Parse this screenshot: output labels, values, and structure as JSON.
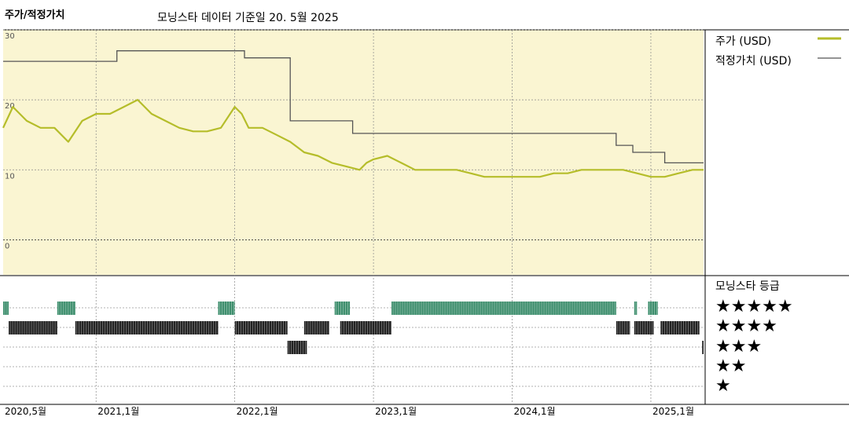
{
  "title": "주가/적정가치",
  "subtitle": "모닝스타 데이터 기준일 20. 5월 2025",
  "legend": {
    "price_label": "주가 (USD)",
    "fair_label": "적정가치 (USD)"
  },
  "rating_title": "모닝스타 등급",
  "rating_levels": [
    "★★★★★",
    "★★★★",
    "★★★",
    "★★",
    "★"
  ],
  "colors": {
    "price": "#b5bd2a",
    "fair": "#555555",
    "panel_bg": "#faf5d2",
    "five_star": "#3f8f6e",
    "four_star": "#222222"
  },
  "chart_data": {
    "type": "line",
    "x_ticks": [
      "2020,5월",
      "2021,1월",
      "2022,1월",
      "2023,1월",
      "2024,1월",
      "2025,1월"
    ],
    "x_tick_dates": [
      2020.33,
      2021.0,
      2022.0,
      2023.0,
      2024.0,
      2025.0
    ],
    "xlim": [
      2020.33,
      2025.38
    ],
    "y_ticks": [
      "30",
      "20",
      "10",
      "0"
    ],
    "ylim": [
      -5,
      30
    ],
    "grid": true,
    "legend_position": "right",
    "series": [
      {
        "name": "주가 (USD)",
        "x": [
          2020.33,
          2020.4,
          2020.5,
          2020.6,
          2020.7,
          2020.8,
          2020.9,
          2021.0,
          2021.1,
          2021.2,
          2021.3,
          2021.4,
          2021.5,
          2021.6,
          2021.7,
          2021.8,
          2021.9,
          2022.0,
          2022.05,
          2022.1,
          2022.2,
          2022.3,
          2022.4,
          2022.5,
          2022.6,
          2022.7,
          2022.8,
          2022.9,
          2022.95,
          2023.0,
          2023.1,
          2023.2,
          2023.3,
          2023.4,
          2023.5,
          2023.6,
          2023.7,
          2023.8,
          2023.9,
          2024.0,
          2024.1,
          2024.2,
          2024.3,
          2024.4,
          2024.5,
          2024.6,
          2024.7,
          2024.8,
          2024.9,
          2025.0,
          2025.1,
          2025.2,
          2025.3,
          2025.38
        ],
        "values": [
          16,
          19,
          17,
          16,
          16,
          14,
          17,
          18,
          18,
          19,
          20,
          18,
          17,
          16,
          15.5,
          15.5,
          16,
          19,
          18,
          16,
          16,
          15,
          14,
          12.5,
          12,
          11,
          10.5,
          10,
          11,
          11.5,
          12,
          11,
          10,
          10,
          10,
          10,
          9.5,
          9,
          9,
          9,
          9,
          9,
          9.5,
          9.5,
          10,
          10,
          10,
          10,
          9.5,
          9,
          9,
          9.5,
          10,
          10
        ]
      },
      {
        "name": "적정가치 (USD)",
        "x": [
          2020.33,
          2021.15,
          2021.15,
          2022.07,
          2022.07,
          2022.4,
          2022.4,
          2022.85,
          2022.85,
          2024.75,
          2024.75,
          2024.87,
          2024.87,
          2025.1,
          2025.1,
          2025.38
        ],
        "values": [
          25.5,
          25.5,
          27,
          27,
          26,
          26,
          17,
          17,
          15.2,
          15.2,
          13.5,
          13.5,
          12.5,
          12.5,
          11,
          11
        ]
      }
    ],
    "ratings": {
      "five_star_periods": [
        [
          2020.33,
          2020.37
        ],
        [
          2020.72,
          2020.85
        ],
        [
          2021.88,
          2022.0
        ],
        [
          2022.72,
          2022.83
        ],
        [
          2023.13,
          2024.75
        ],
        [
          2024.88,
          2024.9
        ],
        [
          2024.98,
          2025.05
        ]
      ],
      "four_star_periods": [
        [
          2020.37,
          2020.72
        ],
        [
          2020.85,
          2021.88
        ],
        [
          2022.0,
          2022.38
        ],
        [
          2022.5,
          2022.68
        ],
        [
          2022.76,
          2023.13
        ],
        [
          2024.75,
          2024.85
        ],
        [
          2024.88,
          2025.02
        ],
        [
          2025.07,
          2025.35
        ]
      ],
      "three_star_periods": [
        [
          2022.38,
          2022.52
        ],
        [
          2025.37,
          2025.38
        ]
      ]
    }
  }
}
